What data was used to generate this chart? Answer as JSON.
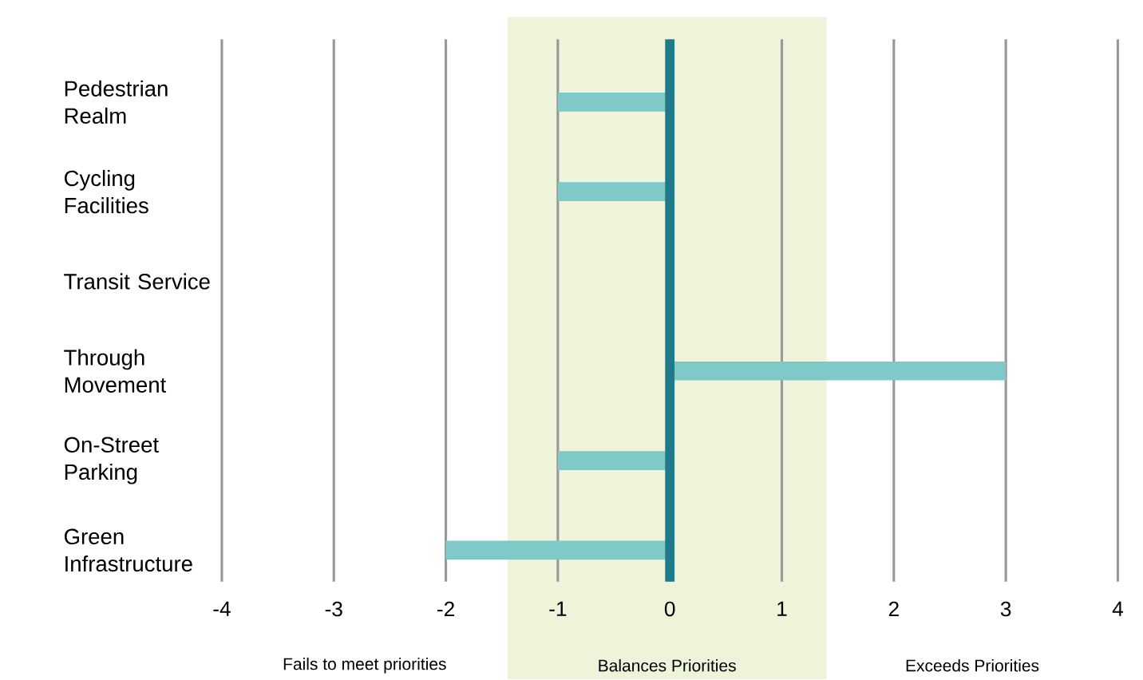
{
  "chart_data": {
    "type": "bar",
    "orientation": "horizontal",
    "categories": [
      "Pedestrian Realm",
      "Cycling Facilities",
      "Transit Service",
      "Through Movement",
      "On-Street Parking",
      "Green Infrastructure"
    ],
    "values": [
      -1,
      -1,
      0,
      3,
      -1,
      -2
    ],
    "color": "#7fc9c9",
    "xlim": [
      -4,
      4
    ],
    "xticks": [
      -4,
      -3,
      -2,
      -1,
      0,
      1,
      2,
      3,
      4
    ],
    "grid": "x",
    "bands": [
      {
        "axis": "x",
        "from": -1.45,
        "to": 1.4,
        "label": "Balances Priorities",
        "color": "#eef4d9"
      }
    ],
    "ref_lines": [
      {
        "axis": "x",
        "value": 0,
        "color": "#1f7a8a"
      }
    ],
    "annotations": [
      "Fails to meet priorities",
      "Exceeds Priorities"
    ]
  }
}
